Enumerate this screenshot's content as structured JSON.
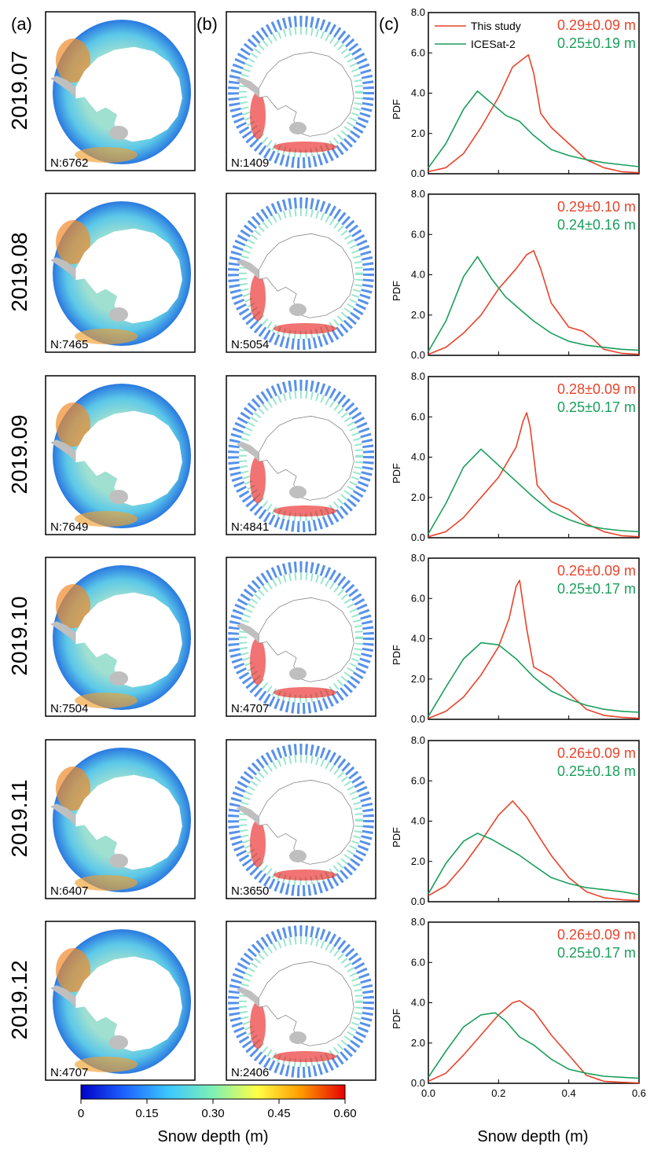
{
  "panel_letters": {
    "a": "(a)",
    "b": "(b)",
    "c": "(c)"
  },
  "colorbar": {
    "ticks": [
      "0",
      "0.15",
      "0.30",
      "0.45",
      "0.60"
    ],
    "label": "Snow depth (m)",
    "colors": [
      "#0000c8",
      "#1e64ff",
      "#3cc8ff",
      "#7ff0b4",
      "#ffff46",
      "#ff9a00",
      "#e60000"
    ]
  },
  "colors": {
    "this_study": "#e8432b",
    "icesat2": "#1a9e5c",
    "land": "#bfbfbf"
  },
  "icons": {
    "map_a": "antarctic-snow-depth-map",
    "map_b": "antarctic-icesat2-track-map"
  },
  "chart_data": {
    "type": "line",
    "title": "",
    "xlabel": "Snow depth (m)",
    "ylabel": "PDF",
    "xlim": [
      0.0,
      0.6
    ],
    "ylim": [
      0.0,
      8.0
    ],
    "xticks": [
      "0.0",
      "0.2",
      "0.4",
      "0.6"
    ],
    "yticks": [
      "0.0",
      "2.0",
      "4.0",
      "6.0",
      "8.0"
    ],
    "legend": {
      "placement": "top-left",
      "entries": [
        "This study",
        "ICESat-2"
      ]
    },
    "panels": [
      {
        "month": "2019.07",
        "n_a": "N:6762",
        "n_b": "N:1409",
        "stat_this": "0.29±0.09 m",
        "stat_ice": "0.25±0.19 m",
        "series": [
          {
            "name": "This study",
            "x": [
              0.0,
              0.05,
              0.1,
              0.15,
              0.2,
              0.24,
              0.27,
              0.285,
              0.3,
              0.32,
              0.35,
              0.4,
              0.45,
              0.5,
              0.55,
              0.6
            ],
            "y": [
              0.1,
              0.3,
              1.0,
              2.3,
              3.8,
              5.3,
              5.7,
              5.9,
              5.0,
              3.0,
              2.3,
              1.5,
              0.7,
              0.3,
              0.1,
              0.05
            ]
          },
          {
            "name": "ICESat-2",
            "x": [
              0.0,
              0.05,
              0.1,
              0.14,
              0.18,
              0.22,
              0.26,
              0.3,
              0.35,
              0.4,
              0.45,
              0.5,
              0.55,
              0.6
            ],
            "y": [
              0.3,
              1.5,
              3.2,
              4.1,
              3.5,
              2.9,
              2.6,
              1.9,
              1.2,
              0.9,
              0.7,
              0.55,
              0.45,
              0.35
            ]
          }
        ]
      },
      {
        "month": "2019.08",
        "n_a": "N:7465",
        "n_b": "N:5054",
        "stat_this": "0.29±0.10 m",
        "stat_ice": "0.24±0.16 m",
        "series": [
          {
            "name": "This study",
            "x": [
              0.0,
              0.05,
              0.1,
              0.15,
              0.2,
              0.25,
              0.28,
              0.3,
              0.32,
              0.35,
              0.4,
              0.44,
              0.47,
              0.5,
              0.55,
              0.6
            ],
            "y": [
              0.05,
              0.4,
              1.1,
              2.0,
              3.3,
              4.3,
              5.0,
              5.2,
              4.3,
              2.6,
              1.4,
              1.2,
              0.8,
              0.3,
              0.1,
              0.05
            ]
          },
          {
            "name": "ICESat-2",
            "x": [
              0.0,
              0.05,
              0.1,
              0.14,
              0.18,
              0.22,
              0.26,
              0.3,
              0.35,
              0.4,
              0.45,
              0.5,
              0.55,
              0.6
            ],
            "y": [
              0.2,
              1.7,
              3.9,
              4.9,
              3.8,
              2.9,
              2.3,
              1.7,
              1.1,
              0.7,
              0.5,
              0.4,
              0.3,
              0.25
            ]
          }
        ]
      },
      {
        "month": "2019.09",
        "n_a": "N:7649",
        "n_b": "N:4841",
        "stat_this": "0.28±0.09 m",
        "stat_ice": "0.25±0.17 m",
        "series": [
          {
            "name": "This study",
            "x": [
              0.0,
              0.05,
              0.1,
              0.15,
              0.2,
              0.25,
              0.27,
              0.28,
              0.29,
              0.31,
              0.35,
              0.4,
              0.45,
              0.5,
              0.55,
              0.6
            ],
            "y": [
              0.05,
              0.3,
              1.0,
              2.0,
              3.0,
              4.5,
              5.8,
              6.2,
              5.5,
              2.6,
              1.8,
              1.4,
              0.7,
              0.3,
              0.1,
              0.05
            ]
          },
          {
            "name": "ICESat-2",
            "x": [
              0.0,
              0.05,
              0.1,
              0.15,
              0.2,
              0.25,
              0.3,
              0.35,
              0.4,
              0.45,
              0.5,
              0.55,
              0.6
            ],
            "y": [
              0.2,
              1.7,
              3.5,
              4.4,
              3.6,
              2.8,
              2.0,
              1.3,
              0.9,
              0.6,
              0.45,
              0.35,
              0.3
            ]
          }
        ]
      },
      {
        "month": "2019.10",
        "n_a": "N:7504",
        "n_b": "N:4707",
        "stat_this": "0.26±0.09 m",
        "stat_ice": "0.25±0.17 m",
        "series": [
          {
            "name": "This study",
            "x": [
              0.0,
              0.05,
              0.1,
              0.15,
              0.2,
              0.23,
              0.25,
              0.26,
              0.28,
              0.3,
              0.35,
              0.4,
              0.45,
              0.5,
              0.55,
              0.6
            ],
            "y": [
              0.05,
              0.4,
              1.1,
              2.2,
              3.6,
              5.0,
              6.6,
              6.9,
              4.5,
              2.6,
              2.1,
              1.3,
              0.5,
              0.2,
              0.1,
              0.05
            ]
          },
          {
            "name": "ICESat-2",
            "x": [
              0.0,
              0.05,
              0.1,
              0.15,
              0.2,
              0.25,
              0.3,
              0.35,
              0.4,
              0.45,
              0.5,
              0.55,
              0.6
            ],
            "y": [
              0.15,
              1.6,
              3.0,
              3.8,
              3.7,
              3.0,
              2.1,
              1.4,
              1.0,
              0.7,
              0.5,
              0.4,
              0.35
            ]
          }
        ]
      },
      {
        "month": "2019.11",
        "n_a": "N:6407",
        "n_b": "N:3650",
        "stat_this": "0.26±0.09 m",
        "stat_ice": "0.25±0.18 m",
        "series": [
          {
            "name": "This study",
            "x": [
              0.0,
              0.05,
              0.1,
              0.15,
              0.2,
              0.24,
              0.28,
              0.32,
              0.35,
              0.4,
              0.45,
              0.5,
              0.55,
              0.6
            ],
            "y": [
              0.3,
              0.8,
              1.8,
              3.0,
              4.3,
              5.0,
              4.2,
              3.1,
              2.3,
              1.2,
              0.5,
              0.2,
              0.1,
              0.05
            ]
          },
          {
            "name": "ICESat-2",
            "x": [
              0.0,
              0.05,
              0.1,
              0.14,
              0.18,
              0.22,
              0.26,
              0.3,
              0.35,
              0.4,
              0.45,
              0.5,
              0.55,
              0.6
            ],
            "y": [
              0.4,
              1.9,
              3.0,
              3.4,
              3.1,
              2.7,
              2.3,
              1.8,
              1.2,
              0.9,
              0.7,
              0.6,
              0.5,
              0.35
            ]
          }
        ]
      },
      {
        "month": "2019.12",
        "n_a": "N:4707",
        "n_b": "N:2406",
        "stat_this": "0.26±0.09 m",
        "stat_ice": "0.25±0.17 m",
        "series": [
          {
            "name": "This study",
            "x": [
              0.0,
              0.05,
              0.1,
              0.15,
              0.2,
              0.24,
              0.26,
              0.3,
              0.35,
              0.4,
              0.45,
              0.5,
              0.55,
              0.6
            ],
            "y": [
              0.1,
              0.5,
              1.4,
              2.4,
              3.4,
              4.0,
              4.1,
              3.6,
              2.4,
              1.4,
              0.4,
              0.1,
              0.05,
              0.02
            ]
          },
          {
            "name": "ICESat-2",
            "x": [
              0.0,
              0.05,
              0.1,
              0.15,
              0.19,
              0.22,
              0.26,
              0.3,
              0.35,
              0.4,
              0.45,
              0.5,
              0.55,
              0.6
            ],
            "y": [
              0.3,
              1.6,
              2.8,
              3.4,
              3.5,
              3.1,
              2.3,
              1.9,
              1.2,
              0.7,
              0.5,
              0.35,
              0.3,
              0.25
            ]
          }
        ]
      }
    ]
  }
}
